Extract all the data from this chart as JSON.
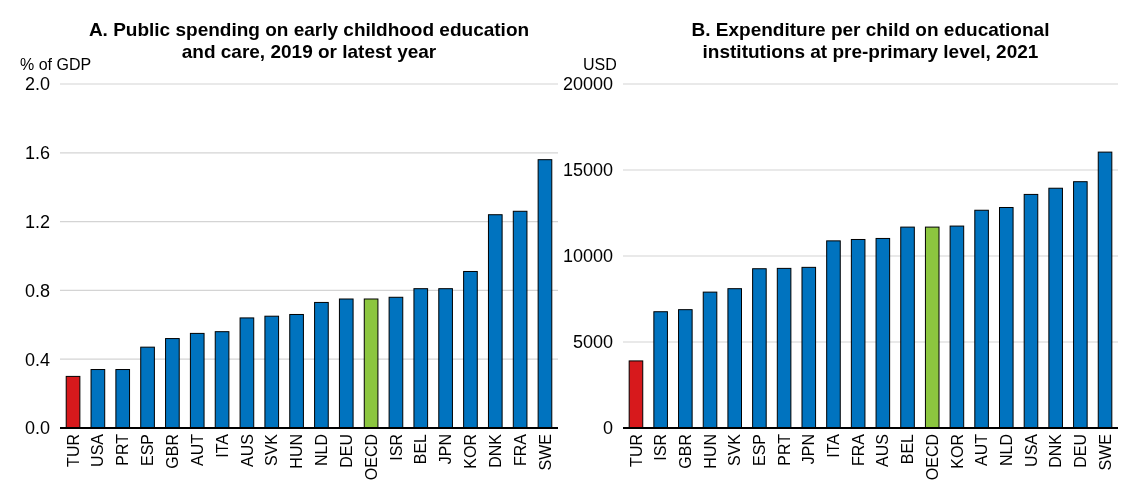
{
  "chart_data": [
    {
      "type": "bar",
      "title": "A. Public spending on early childhood education and care, 2019 or latest year",
      "ylabel": "% of GDP",
      "categories": [
        "TUR",
        "USA",
        "PRT",
        "ESP",
        "GBR",
        "AUT",
        "ITA",
        "AUS",
        "SVK",
        "HUN",
        "NLD",
        "DEU",
        "OECD",
        "ISR",
        "BEL",
        "JPN",
        "KOR",
        "DNK",
        "FRA",
        "SWE"
      ],
      "values": [
        0.3,
        0.34,
        0.34,
        0.47,
        0.52,
        0.55,
        0.56,
        0.64,
        0.65,
        0.66,
        0.73,
        0.75,
        0.75,
        0.76,
        0.81,
        0.81,
        0.91,
        1.24,
        1.26,
        1.56
      ],
      "colors": [
        "#d7191c",
        "#0073bf",
        "#0073bf",
        "#0073bf",
        "#0073bf",
        "#0073bf",
        "#0073bf",
        "#0073bf",
        "#0073bf",
        "#0073bf",
        "#0073bf",
        "#0073bf",
        "#8cc63f",
        "#0073bf",
        "#0073bf",
        "#0073bf",
        "#0073bf",
        "#0073bf",
        "#0073bf",
        "#0073bf"
      ],
      "ylim": [
        0,
        2
      ],
      "yticks": [
        {
          "value": 0,
          "label": "0.0"
        },
        {
          "value": 0.4,
          "label": "0.4"
        },
        {
          "value": 0.8,
          "label": "0.8"
        },
        {
          "value": 1.2,
          "label": "1.2"
        },
        {
          "value": 1.6,
          "label": "1.6"
        },
        {
          "value": 2,
          "label": "2.0"
        }
      ],
      "grid": "y"
    },
    {
      "type": "bar",
      "title": "B. Expenditure per child on educational institutions at pre-primary level, 2021",
      "ylabel": "USD",
      "categories": [
        "TUR",
        "ISR",
        "GBR",
        "HUN",
        "SVK",
        "ESP",
        "PRT",
        "JPN",
        "ITA",
        "FRA",
        "AUS",
        "BEL",
        "OECD",
        "KOR",
        "AUT",
        "NLD",
        "USA",
        "DNK",
        "DEU",
        "SWE"
      ],
      "values": [
        3900,
        6760,
        6880,
        7900,
        8100,
        9260,
        9280,
        9340,
        10880,
        10960,
        11020,
        11680,
        11680,
        11740,
        12660,
        12820,
        13580,
        13940,
        14320,
        16040
      ],
      "colors": [
        "#d7191c",
        "#0073bf",
        "#0073bf",
        "#0073bf",
        "#0073bf",
        "#0073bf",
        "#0073bf",
        "#0073bf",
        "#0073bf",
        "#0073bf",
        "#0073bf",
        "#0073bf",
        "#8cc63f",
        "#0073bf",
        "#0073bf",
        "#0073bf",
        "#0073bf",
        "#0073bf",
        "#0073bf",
        "#0073bf"
      ],
      "ylim": [
        0,
        20000
      ],
      "yticks": [
        0,
        5000,
        10000,
        15000,
        20000
      ],
      "grid": "y"
    }
  ]
}
